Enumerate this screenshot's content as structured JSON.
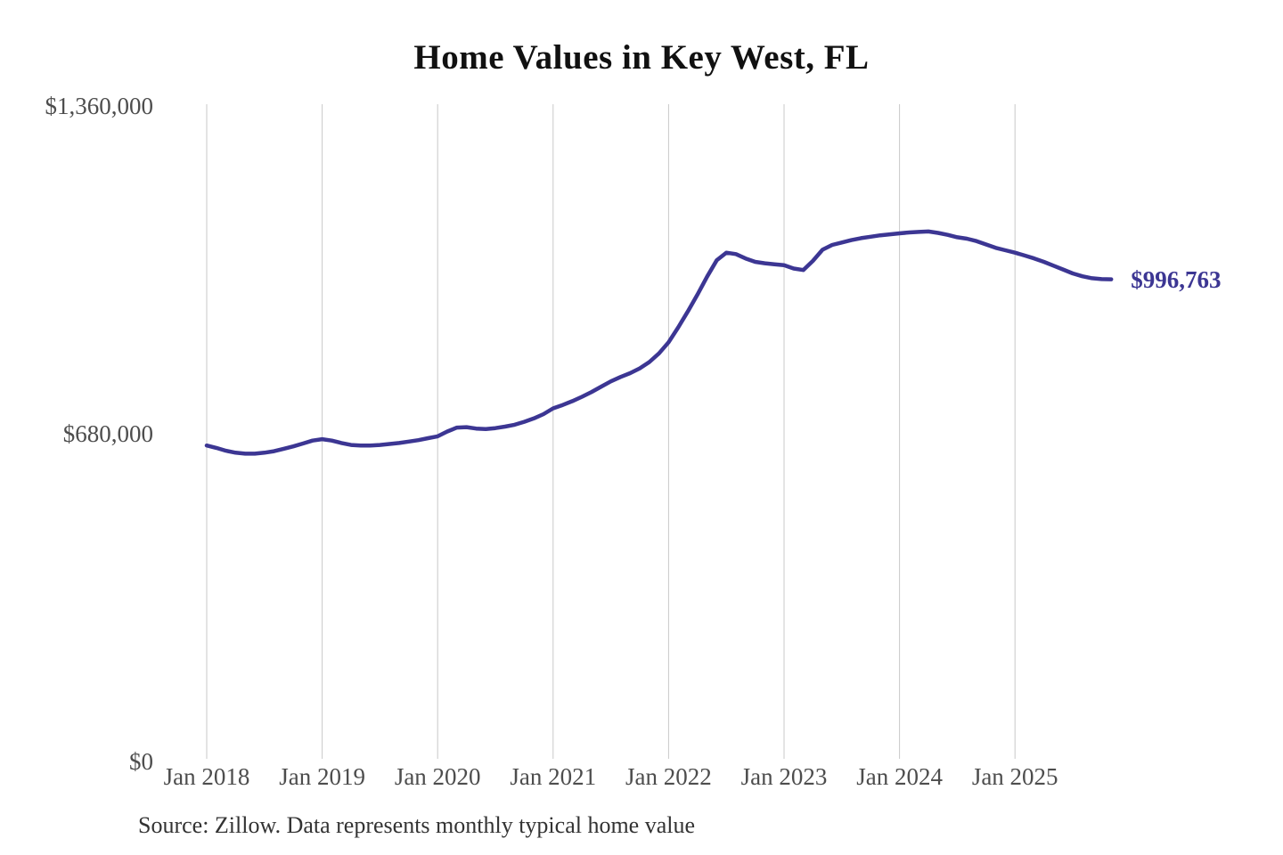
{
  "chart_data": {
    "type": "line",
    "title": "Home Values in Key West, FL",
    "months": [
      "2018-01",
      "2018-02",
      "2018-03",
      "2018-04",
      "2018-05",
      "2018-06",
      "2018-07",
      "2018-08",
      "2018-09",
      "2018-10",
      "2018-11",
      "2018-12",
      "2019-01",
      "2019-02",
      "2019-03",
      "2019-04",
      "2019-05",
      "2019-06",
      "2019-07",
      "2019-08",
      "2019-09",
      "2019-10",
      "2019-11",
      "2019-12",
      "2020-01",
      "2020-02",
      "2020-03",
      "2020-04",
      "2020-05",
      "2020-06",
      "2020-07",
      "2020-08",
      "2020-09",
      "2020-10",
      "2020-11",
      "2020-12",
      "2021-01",
      "2021-02",
      "2021-03",
      "2021-04",
      "2021-05",
      "2021-06",
      "2021-07",
      "2021-08",
      "2021-09",
      "2021-10",
      "2021-11",
      "2021-12",
      "2022-01",
      "2022-02",
      "2022-03",
      "2022-04",
      "2022-05",
      "2022-06",
      "2022-07",
      "2022-08",
      "2022-09",
      "2022-10",
      "2022-11",
      "2022-12",
      "2023-01",
      "2023-02",
      "2023-03",
      "2023-04",
      "2023-05",
      "2023-06",
      "2023-07",
      "2023-08",
      "2023-09",
      "2023-10",
      "2023-11",
      "2023-12",
      "2024-01",
      "2024-02",
      "2024-03",
      "2024-04",
      "2024-05",
      "2024-06",
      "2024-07",
      "2024-08",
      "2024-09",
      "2024-10",
      "2024-11",
      "2024-12",
      "2025-01",
      "2025-02",
      "2025-03",
      "2025-04",
      "2025-05",
      "2025-06",
      "2025-07",
      "2025-08",
      "2025-09",
      "2025-10",
      "2025-11"
    ],
    "values": [
      652000,
      647000,
      641000,
      637000,
      635000,
      635000,
      637000,
      640000,
      645000,
      650000,
      656000,
      662000,
      665000,
      662000,
      657000,
      653000,
      652000,
      652000,
      653000,
      655000,
      657000,
      660000,
      663000,
      667000,
      671000,
      681000,
      689000,
      690000,
      687000,
      686000,
      688000,
      691000,
      695000,
      701000,
      708000,
      717000,
      729000,
      736000,
      744000,
      753000,
      763000,
      774000,
      785000,
      794000,
      802000,
      812000,
      825000,
      843000,
      866000,
      897000,
      930000,
      965000,
      1002000,
      1036000,
      1052000,
      1049000,
      1040000,
      1033000,
      1030000,
      1028000,
      1026000,
      1019000,
      1016000,
      1035000,
      1058000,
      1068000,
      1073000,
      1078000,
      1082000,
      1085000,
      1088000,
      1090000,
      1092000,
      1094000,
      1095000,
      1096000,
      1093000,
      1089000,
      1084000,
      1081000,
      1076000,
      1069000,
      1062000,
      1057000,
      1052000,
      1046000,
      1040000,
      1033000,
      1025000,
      1017000,
      1009000,
      1003000,
      999000,
      997000,
      996763
    ],
    "x_tick_labels": [
      "Jan 2018",
      "Jan 2019",
      "Jan 2020",
      "Jan 2021",
      "Jan 2022",
      "Jan 2023",
      "Jan 2024",
      "Jan 2025"
    ],
    "y_ticks": [
      {
        "label": "$1,360,000",
        "value": 1360000
      },
      {
        "label": "$680,000",
        "value": 680000
      },
      {
        "label": "$0",
        "value": 0
      }
    ],
    "ylim": [
      0,
      1360000
    ],
    "grid": "vertical",
    "legend": "none",
    "last_value": 996763,
    "last_point_label": "$996,763",
    "source": "Source: Zillow. Data represents monthly typical home value",
    "line_color": "#3c3693",
    "grid_color": "#c9c9c9",
    "axis_text_color": "#4d4d4d",
    "title_color": "#111111",
    "source_color": "#333333"
  }
}
